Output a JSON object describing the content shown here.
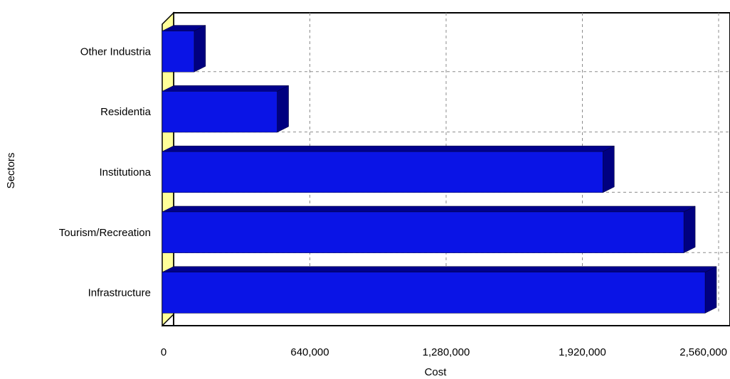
{
  "chart_data": {
    "type": "bar",
    "orientation": "horizontal",
    "style": "3d",
    "categories": [
      "Other Industria",
      "Residentia",
      "Institutiona",
      "Tourism/Recreation",
      "Infrastructure"
    ],
    "values": [
      150000,
      540000,
      2070000,
      2450000,
      2550000
    ],
    "xlabel": "Cost",
    "ylabel": "Sectors",
    "xticks": [
      0,
      640000,
      1280000,
      1920000,
      2560000
    ],
    "xtick_labels": [
      "0",
      "640,000",
      "1,280,000",
      "1,920,000",
      "2,560,000"
    ],
    "xlim": [
      0,
      2560000
    ],
    "grid": true,
    "legend": "none",
    "colors": {
      "bar_front": "#0a14e6",
      "bar_top": "#00008c",
      "bar_side": "#000080",
      "wall": "#ffffff",
      "floor": "#ffff99",
      "grid": "#8c8c8c"
    }
  }
}
